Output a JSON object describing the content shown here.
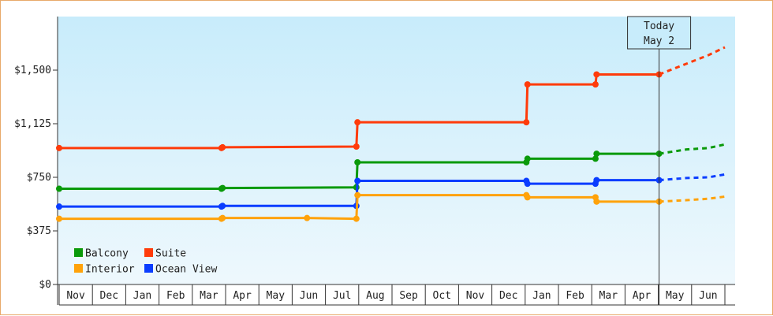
{
  "chart_data": {
    "type": "line",
    "step": true,
    "ylim": [
      0,
      1875
    ],
    "yticks": [
      {
        "value": 0,
        "label": "$0"
      },
      {
        "value": 375,
        "label": "$375"
      },
      {
        "value": 750,
        "label": "$750"
      },
      {
        "value": 1125,
        "label": "$1,125"
      },
      {
        "value": 1500,
        "label": "$1,500"
      }
    ],
    "x_range": [
      "2020-11-01",
      "2022-07-01"
    ],
    "months": [
      {
        "date": "2020-11-01",
        "label": "Nov"
      },
      {
        "date": "2020-12-01",
        "label": "Dec"
      },
      {
        "date": "2021-01-01",
        "label": "Jan"
      },
      {
        "date": "2021-02-01",
        "label": "Feb"
      },
      {
        "date": "2021-03-01",
        "label": "Mar"
      },
      {
        "date": "2021-04-01",
        "label": "Apr"
      },
      {
        "date": "2021-05-01",
        "label": "May"
      },
      {
        "date": "2021-06-01",
        "label": "Jun"
      },
      {
        "date": "2021-07-01",
        "label": "Jul"
      },
      {
        "date": "2021-08-01",
        "label": "Aug"
      },
      {
        "date": "2021-09-01",
        "label": "Sep"
      },
      {
        "date": "2021-10-01",
        "label": "Oct"
      },
      {
        "date": "2021-11-01",
        "label": "Nov"
      },
      {
        "date": "2021-12-01",
        "label": "Dec"
      },
      {
        "date": "2022-01-01",
        "label": "Jan"
      },
      {
        "date": "2022-02-01",
        "label": "Feb"
      },
      {
        "date": "2022-03-01",
        "label": "Mar"
      },
      {
        "date": "2022-04-01",
        "label": "Apr"
      },
      {
        "date": "2022-05-01",
        "label": "May"
      },
      {
        "date": "2022-06-01",
        "label": "Jun"
      }
    ],
    "today": {
      "date": "2022-05-02",
      "line1": "Today",
      "line2": "May 2"
    },
    "series": [
      {
        "name": "Suite",
        "color": "#ff3b0a",
        "points": [
          [
            "2020-11-01",
            955
          ],
          [
            "2021-03-29",
            955
          ],
          [
            "2021-03-30",
            960
          ],
          [
            "2021-07-30",
            965
          ],
          [
            "2021-07-31",
            1135
          ],
          [
            "2022-01-01",
            1135
          ],
          [
            "2022-01-02",
            1400
          ],
          [
            "2022-03-05",
            1400
          ],
          [
            "2022-03-06",
            1470
          ],
          [
            "2022-05-02",
            1470
          ]
        ],
        "forecast": [
          [
            "2022-05-02",
            1470
          ],
          [
            "2022-05-27",
            1545
          ],
          [
            "2022-06-16",
            1605
          ],
          [
            "2022-07-01",
            1660
          ]
        ]
      },
      {
        "name": "Balcony",
        "color": "#0a9a0a",
        "points": [
          [
            "2020-11-01",
            670
          ],
          [
            "2021-03-29",
            670
          ],
          [
            "2021-03-30",
            675
          ],
          [
            "2021-07-30",
            680
          ],
          [
            "2021-07-31",
            855
          ],
          [
            "2022-01-01",
            855
          ],
          [
            "2022-01-02",
            880
          ],
          [
            "2022-03-05",
            880
          ],
          [
            "2022-03-06",
            915
          ],
          [
            "2022-05-02",
            915
          ]
        ],
        "forecast": [
          [
            "2022-05-02",
            915
          ],
          [
            "2022-05-27",
            945
          ],
          [
            "2022-06-16",
            955
          ],
          [
            "2022-07-01",
            980
          ]
        ]
      },
      {
        "name": "Ocean View",
        "color": "#0a3dff",
        "points": [
          [
            "2020-11-01",
            545
          ],
          [
            "2021-03-29",
            545
          ],
          [
            "2021-03-30",
            550
          ],
          [
            "2021-07-30",
            550
          ],
          [
            "2021-07-31",
            725
          ],
          [
            "2022-01-01",
            725
          ],
          [
            "2022-01-02",
            705
          ],
          [
            "2022-03-05",
            705
          ],
          [
            "2022-03-06",
            730
          ],
          [
            "2022-05-02",
            730
          ]
        ],
        "forecast": [
          [
            "2022-05-02",
            730
          ],
          [
            "2022-05-27",
            745
          ],
          [
            "2022-06-16",
            750
          ],
          [
            "2022-07-01",
            770
          ]
        ]
      },
      {
        "name": "Interior",
        "color": "#ffa20a",
        "points": [
          [
            "2020-11-01",
            460
          ],
          [
            "2021-03-29",
            460
          ],
          [
            "2021-03-30",
            465
          ],
          [
            "2021-06-15",
            465
          ],
          [
            "2021-07-30",
            460
          ],
          [
            "2021-07-31",
            625
          ],
          [
            "2022-01-01",
            625
          ],
          [
            "2022-01-02",
            610
          ],
          [
            "2022-03-05",
            610
          ],
          [
            "2022-03-06",
            580
          ],
          [
            "2022-05-02",
            580
          ]
        ],
        "forecast": [
          [
            "2022-05-02",
            580
          ],
          [
            "2022-05-27",
            590
          ],
          [
            "2022-06-16",
            600
          ],
          [
            "2022-07-01",
            615
          ]
        ]
      }
    ],
    "legend_rows": [
      [
        "Balcony",
        "Suite"
      ],
      [
        "Interior",
        "Ocean View"
      ]
    ],
    "legend_placement": "bottom-left",
    "grid": false
  }
}
